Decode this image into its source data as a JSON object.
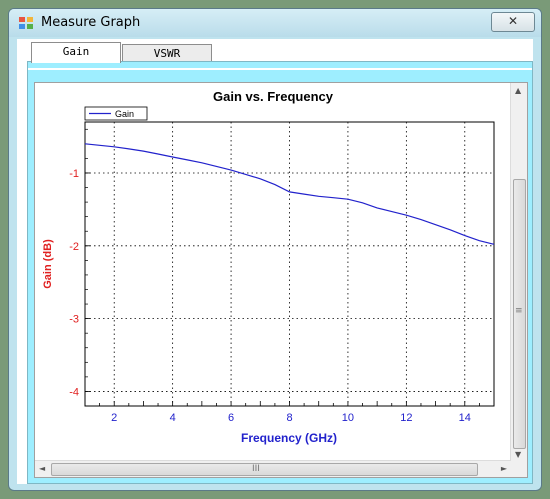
{
  "window": {
    "title": "Measure Graph",
    "close_glyph": "✕"
  },
  "tabs": [
    {
      "label": "Gain",
      "active": true
    },
    {
      "label": "VSWR",
      "active": false
    }
  ],
  "scroll": {
    "up": "▲",
    "down": "▼",
    "left": "◄",
    "right": "►",
    "v_grip": "≡",
    "h_grip": "III"
  },
  "colors": {
    "series": "#2222cc",
    "axis_label": "#e02020",
    "tick_label": "#2222cc",
    "panel": "#9eeeff"
  },
  "chart_data": {
    "type": "line",
    "title": "Gain vs. Frequency",
    "xlabel": "Frequency (GHz)",
    "ylabel": "Gain (dB)",
    "xlim": [
      1,
      15
    ],
    "ylim": [
      -4.2,
      -0.3
    ],
    "xticks": [
      2,
      4,
      6,
      8,
      10,
      12,
      14
    ],
    "yticks": [
      -1,
      -2,
      -3,
      -4
    ],
    "grid": true,
    "legend": "top-left",
    "series": [
      {
        "name": "Gain",
        "x": [
          1,
          1.5,
          2,
          2.5,
          3,
          3.5,
          4,
          4.5,
          5,
          5.5,
          6,
          6.5,
          7,
          7.5,
          8,
          8.5,
          9,
          9.5,
          10,
          10.5,
          11,
          11.5,
          12,
          12.5,
          13,
          13.5,
          14,
          14.5,
          15
        ],
        "y": [
          -0.6,
          -0.62,
          -0.64,
          -0.67,
          -0.7,
          -0.74,
          -0.78,
          -0.82,
          -0.86,
          -0.91,
          -0.96,
          -1.02,
          -1.08,
          -1.16,
          -1.26,
          -1.29,
          -1.32,
          -1.34,
          -1.36,
          -1.41,
          -1.48,
          -1.53,
          -1.58,
          -1.64,
          -1.71,
          -1.78,
          -1.86,
          -1.93,
          -1.98
        ]
      }
    ]
  }
}
